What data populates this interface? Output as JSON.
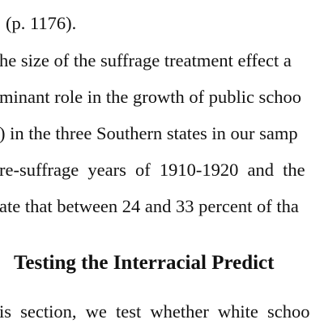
{
  "document": {
    "lines": [
      "(p. 1176).",
      "he size of the suffrage treatment effect a",
      "minant role in the growth of public schoo",
      ") in the three Southern states in our samp",
      "re-suffrage years of 1910-1920 and the",
      "ate that between 24 and 33 percent of tha"
    ],
    "section_heading": "Testing the Interracial Predict",
    "after_heading_lines": [
      "is section, we test whether white schoo"
    ]
  }
}
